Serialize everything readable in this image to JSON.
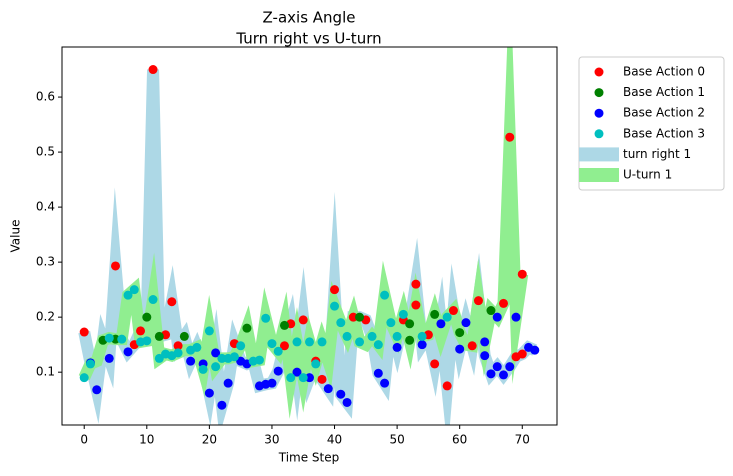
{
  "chart_data": {
    "type": "scatter",
    "title": "Z-axis Angle",
    "subtitle": "Turn right vs U-turn",
    "x_label": "Time Step",
    "y_label": "Value",
    "xlim": [
      -3.55,
      75.55
    ],
    "ylim": [
      0.004,
      0.691
    ],
    "xticks": [
      0,
      10,
      20,
      30,
      40,
      50,
      60,
      70
    ],
    "yticks": [
      0.1,
      0.2,
      0.3,
      0.4,
      0.5,
      0.6
    ],
    "legend": "outside-upper-right",
    "lines": [
      {
        "name": "turn right 1",
        "color": "#add8e6",
        "x": [
          0,
          1,
          2,
          3,
          4,
          5,
          6,
          7,
          8,
          9,
          10,
          11,
          12,
          13,
          14,
          15,
          16,
          17,
          18,
          19,
          20,
          21,
          22,
          23,
          24,
          25,
          26,
          27,
          28,
          29,
          30,
          31,
          32,
          33,
          34,
          35,
          36,
          37,
          38,
          39,
          40,
          41,
          42,
          43,
          44,
          45,
          46,
          47,
          48,
          49,
          50,
          51,
          52,
          53,
          54,
          55,
          56,
          57,
          58,
          59,
          60,
          61,
          62,
          63,
          64,
          65,
          66,
          67,
          68,
          69,
          70,
          71,
          72
        ],
        "values": [
          0.173,
          0.117,
          0.068,
          0.158,
          0.125,
          0.293,
          0.16,
          0.137,
          0.15,
          0.175,
          0.2,
          0.65,
          0.165,
          0.168,
          0.228,
          0.148,
          0.165,
          0.12,
          0.145,
          0.115,
          0.062,
          0.135,
          0.04,
          0.08,
          0.152,
          0.12,
          0.115,
          0.12,
          0.075,
          0.078,
          0.08,
          0.102,
          0.148,
          0.188,
          0.1,
          0.195,
          0.09,
          0.12,
          0.087,
          0.07,
          0.25,
          0.06,
          0.045,
          0.2,
          0.2,
          0.195,
          0.165,
          0.098,
          0.08,
          0.19,
          0.145,
          0.195,
          0.188,
          0.26,
          0.15,
          0.168,
          0.115,
          0.188,
          0.075,
          0.21,
          0.142,
          0.19,
          0.148,
          0.23,
          0.13,
          0.097,
          0.11,
          0.095,
          0.11,
          0.128,
          0.133,
          0.145,
          0.14
        ]
      },
      {
        "name": "U-turn 1",
        "color": "#90ee90",
        "x": [
          0,
          1,
          2,
          3,
          4,
          5,
          6,
          7,
          8,
          9,
          10,
          11,
          12,
          13,
          14,
          15,
          16,
          17,
          18,
          19,
          20,
          21,
          22,
          23,
          24,
          25,
          26,
          27,
          28,
          29,
          30,
          31,
          32,
          33,
          34,
          35,
          36,
          37,
          38,
          39,
          40,
          41,
          42,
          43,
          44,
          45,
          46,
          47,
          48,
          49,
          50,
          51,
          52,
          53,
          54,
          55,
          56,
          57,
          58,
          59,
          60,
          61,
          62,
          63,
          64,
          65,
          66,
          67,
          68,
          69,
          70
        ],
        "values": [
          0.09,
          0.115,
          0.12,
          0.158,
          0.162,
          0.16,
          0.16,
          0.24,
          0.25,
          0.155,
          0.157,
          0.232,
          0.125,
          0.133,
          0.13,
          0.135,
          0.14,
          0.14,
          0.145,
          0.105,
          0.175,
          0.11,
          0.125,
          0.125,
          0.128,
          0.148,
          0.18,
          0.12,
          0.122,
          0.198,
          0.152,
          0.138,
          0.185,
          0.09,
          0.155,
          0.09,
          0.155,
          0.115,
          0.155,
          0.12,
          0.22,
          0.19,
          0.165,
          0.2,
          0.155,
          0.15,
          0.165,
          0.15,
          0.24,
          0.19,
          0.165,
          0.205,
          0.158,
          0.222,
          0.165,
          0.168,
          0.205,
          0.165,
          0.2,
          0.212,
          0.172,
          0.15,
          0.148,
          0.23,
          0.155,
          0.212,
          0.2,
          0.225,
          0.527,
          0.2,
          0.278
        ]
      }
    ],
    "series": [
      {
        "name": "Base Action 0",
        "color": "#ff0000",
        "x": [
          0,
          5,
          8,
          9,
          11,
          13,
          14,
          15,
          24,
          32,
          33,
          35,
          37,
          38,
          40,
          43,
          45,
          51,
          53,
          55,
          56,
          58,
          62,
          63,
          69,
          70,
          53,
          59,
          67,
          68,
          70
        ],
        "values": [
          0.173,
          0.293,
          0.15,
          0.175,
          0.65,
          0.168,
          0.228,
          0.148,
          0.152,
          0.148,
          0.188,
          0.195,
          0.12,
          0.087,
          0.25,
          0.2,
          0.195,
          0.195,
          0.26,
          0.168,
          0.115,
          0.075,
          0.148,
          0.23,
          0.128,
          0.133,
          0.222,
          0.212,
          0.225,
          0.527,
          0.278
        ]
      },
      {
        "name": "Base Action 1",
        "color": "#008000",
        "x": [
          3,
          5,
          10,
          12,
          16,
          26,
          32,
          44,
          52,
          52,
          56,
          60,
          65
        ],
        "values": [
          0.158,
          0.16,
          0.2,
          0.165,
          0.165,
          0.18,
          0.185,
          0.2,
          0.188,
          0.158,
          0.205,
          0.172,
          0.212
        ]
      },
      {
        "name": "Base Action 2",
        "color": "#0000ff",
        "x": [
          1,
          2,
          4,
          7,
          17,
          19,
          20,
          21,
          22,
          23,
          25,
          26,
          28,
          29,
          30,
          31,
          34,
          36,
          39,
          41,
          42,
          47,
          48,
          50,
          54,
          57,
          60,
          61,
          64,
          65,
          66,
          67,
          68,
          71,
          72,
          64,
          66,
          69
        ],
        "values": [
          0.117,
          0.068,
          0.125,
          0.137,
          0.12,
          0.115,
          0.062,
          0.135,
          0.04,
          0.08,
          0.12,
          0.115,
          0.075,
          0.078,
          0.08,
          0.102,
          0.1,
          0.09,
          0.07,
          0.06,
          0.045,
          0.098,
          0.08,
          0.145,
          0.15,
          0.188,
          0.142,
          0.19,
          0.13,
          0.097,
          0.11,
          0.095,
          0.11,
          0.145,
          0.14,
          0.155,
          0.2,
          0.2
        ]
      },
      {
        "name": "Base Action 3",
        "color": "#00bfbf",
        "x": [
          0,
          1,
          4,
          6,
          7,
          8,
          9,
          10,
          11,
          12,
          13,
          14,
          15,
          17,
          18,
          19,
          20,
          21,
          22,
          23,
          24,
          25,
          27,
          28,
          29,
          30,
          31,
          33,
          34,
          35,
          36,
          37,
          38,
          40,
          41,
          42,
          44,
          46,
          47,
          48,
          49,
          50,
          51,
          54,
          58
        ],
        "values": [
          0.09,
          0.115,
          0.162,
          0.16,
          0.24,
          0.25,
          0.155,
          0.157,
          0.232,
          0.125,
          0.133,
          0.13,
          0.135,
          0.14,
          0.145,
          0.105,
          0.175,
          0.11,
          0.125,
          0.125,
          0.128,
          0.148,
          0.12,
          0.122,
          0.198,
          0.152,
          0.138,
          0.09,
          0.155,
          0.09,
          0.155,
          0.115,
          0.155,
          0.22,
          0.19,
          0.165,
          0.155,
          0.165,
          0.15,
          0.24,
          0.19,
          0.165,
          0.205,
          0.165,
          0.2
        ]
      }
    ]
  }
}
